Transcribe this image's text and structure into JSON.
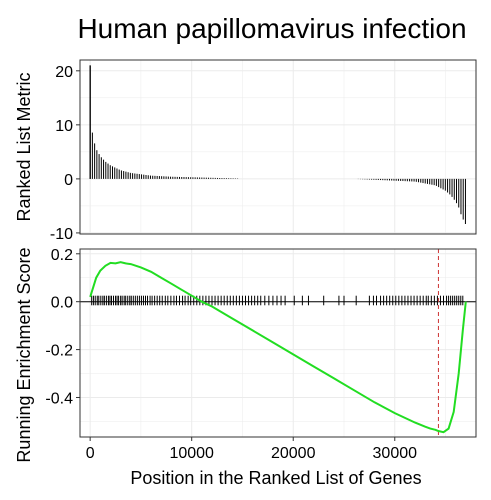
{
  "chart_data": {
    "type": "line",
    "title": "Human papillomavirus infection",
    "xlabel": "Position in the Ranked List of Genes",
    "colors": {
      "curve": "#22dd22",
      "cutoff": "#cc3333",
      "bars": "#000000",
      "grid": "#ebebeb"
    },
    "panels": [
      {
        "name": "ranked-list",
        "ylabel": "Ranked List Metric",
        "xlim": [
          -1000,
          38000
        ],
        "ylim": [
          -10.2,
          22
        ],
        "yticks": [
          20,
          10,
          0,
          -10
        ],
        "ytick_labels": [
          "20",
          "10",
          "0",
          "-10"
        ],
        "metric_profile": {
          "x": [
            0,
            150,
            300,
            600,
            1000,
            1500,
            2000,
            3000,
            4000,
            6000,
            8000,
            10000,
            12000,
            14000,
            16000,
            20000,
            26000,
            32000,
            34000,
            35000,
            35500,
            36000,
            36300,
            36600,
            37000
          ],
          "y": [
            21,
            9.5,
            7.5,
            5.5,
            4.2,
            3.2,
            2.5,
            1.6,
            1.1,
            0.6,
            0.4,
            0.3,
            0.2,
            0.1,
            0,
            0,
            0,
            -0.5,
            -1.2,
            -2.2,
            -3.0,
            -4.2,
            -5.3,
            -7.0,
            -8.5
          ]
        }
      },
      {
        "name": "running-score",
        "ylabel": "Running Enrichment Score",
        "xlim": [
          -1000,
          38000
        ],
        "ylim": [
          -0.565,
          0.22
        ],
        "yticks": [
          0.2,
          0.0,
          -0.2,
          -0.4
        ],
        "ytick_labels": [
          "0.2",
          "0.0",
          "-0.2",
          "-0.4"
        ],
        "xticks": [
          0,
          10000,
          20000,
          30000
        ],
        "xtick_labels": [
          "0",
          "10000",
          "20000",
          "30000"
        ],
        "enrichment_score": {
          "x": [
            0,
            300,
            600,
            1000,
            1500,
            2000,
            2500,
            3000,
            3500,
            4000,
            5000,
            6000,
            7000,
            8000,
            9000,
            10000,
            11000,
            12000,
            14000,
            16000,
            18000,
            20000,
            22000,
            24000,
            26000,
            28000,
            30000,
            32000,
            33000,
            33500,
            34000,
            34300,
            34800,
            35300,
            35800,
            36300,
            36700,
            37000
          ],
          "y": [
            0.02,
            0.06,
            0.1,
            0.13,
            0.15,
            0.162,
            0.16,
            0.165,
            0.16,
            0.157,
            0.143,
            0.125,
            0.1,
            0.075,
            0.05,
            0.025,
            0.0,
            -0.02,
            -0.07,
            -0.12,
            -0.17,
            -0.22,
            -0.27,
            -0.32,
            -0.37,
            -0.42,
            -0.465,
            -0.505,
            -0.522,
            -0.53,
            -0.535,
            -0.54,
            -0.545,
            -0.53,
            -0.46,
            -0.3,
            -0.12,
            0.0
          ]
        },
        "peak_position": 34300,
        "hit_band": [
          -0.015,
          0.025
        ],
        "hit_positions": [
          150,
          320,
          500,
          700,
          850,
          1050,
          1250,
          1400,
          1600,
          1800,
          1950,
          2100,
          2300,
          2500,
          2650,
          2800,
          3000,
          3150,
          3350,
          3500,
          3700,
          3900,
          4050,
          4250,
          4450,
          4650,
          4850,
          5050,
          5250,
          5450,
          5650,
          5900,
          6100,
          6350,
          6600,
          6850,
          7100,
          7400,
          7650,
          7950,
          8250,
          8500,
          8800,
          9100,
          9350,
          9650,
          9900,
          10200,
          10500,
          10800,
          11100,
          11400,
          11700,
          12000,
          12300,
          12600,
          12900,
          13200,
          13500,
          13800,
          14100,
          14400,
          14700,
          15000,
          15300,
          15600,
          15900,
          16200,
          16500,
          16800,
          17200,
          17600,
          18000,
          18400,
          18800,
          19200,
          20100,
          20900,
          21500,
          23000,
          24500,
          25000,
          26200,
          27500,
          27900,
          28200,
          28600,
          28900,
          29200,
          29500,
          29800,
          30100,
          30400,
          30700,
          31000,
          31300,
          31600,
          31900,
          32200,
          32500,
          32800,
          33100,
          33300,
          33600,
          33900,
          34200,
          34500,
          34800,
          35100,
          35300,
          35500,
          35700,
          35900,
          36100,
          36300,
          36500,
          36700
        ]
      }
    ]
  }
}
